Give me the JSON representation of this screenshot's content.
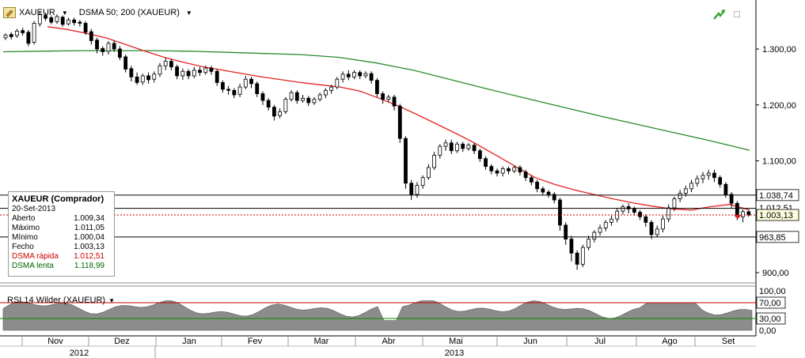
{
  "toolbar": {
    "symbol": "XAUEUR",
    "indicator": "DSMA 50; 200 (XAUEUR)"
  },
  "price_axis": {
    "ticks": [
      "1.300,00",
      "1.200,00",
      "1.100,00",
      "900,00"
    ],
    "hline_upper_label": "1.038,74",
    "hline_current_label": "1.003,13",
    "hline_lower_label": "963,85",
    "hidden_label_partial": "1.012,51"
  },
  "info_box": {
    "title": "XAUEUR (Comprador)",
    "date": "20-Set-2013",
    "rows": [
      {
        "label": "Aberto",
        "value": "1.009,34",
        "color": "#000000"
      },
      {
        "label": "Máximo",
        "value": "1.011,05",
        "color": "#000000"
      },
      {
        "label": "Mínimo",
        "value": "1.000,04",
        "color": "#000000"
      },
      {
        "label": "Fecho",
        "value": "1.003,13",
        "color": "#000000"
      },
      {
        "label": "DSMA rápida",
        "value": "1.012,51",
        "color": "#cc0000"
      },
      {
        "label": "DSMA lenta",
        "value": "1.118,99",
        "color": "#006600"
      }
    ]
  },
  "rsi": {
    "label": "RSI 14 Wilder (XAUEUR)",
    "ticks": [
      "100,00",
      "70,00",
      "30,00",
      "0,00"
    ]
  },
  "time_axis": {
    "months": [
      "Nov",
      "Dez",
      "Jan",
      "Fev",
      "Mar",
      "Abr",
      "Mai",
      "Jun",
      "Jul",
      "Ago",
      "Set"
    ],
    "years": [
      "2012",
      "2013"
    ]
  },
  "colors": {
    "fast_ma": "#e32222",
    "slow_ma": "#2a8a2a",
    "up_candle": "#ffffff",
    "down_candle": "#000000",
    "rsi_fill": "#8c8c8c",
    "rsi_upper_line": "#cc0000",
    "rsi_lower_line": "#008800",
    "accent_arrow": "#2aa02a"
  },
  "chart_data": {
    "type": "line",
    "title": "",
    "series": [
      {
        "name": "DSMA rápida",
        "values": [
          1340,
          1335,
          1328,
          1320,
          1308,
          1296,
          1285,
          1276,
          1268,
          1262,
          1256,
          1250,
          1245,
          1240,
          1236,
          1232,
          1225,
          1212,
          1198,
          1182,
          1165,
          1148,
          1130,
          1110,
          1090,
          1070,
          1058,
          1048,
          1040,
          1032,
          1025,
          1019,
          1014,
          1012,
          1018,
          1022,
          1012
        ]
      },
      {
        "name": "DSMA lenta",
        "values": [
          1295,
          1296,
          1297,
          1297,
          1297,
          1296,
          1294,
          1292,
          1290,
          1285,
          1275,
          1262,
          1245,
          1228,
          1212,
          1196,
          1180,
          1165,
          1150,
          1135,
          1119
        ]
      }
    ],
    "ylim": [
      880,
      1380
    ],
    "yticks": [
      900,
      1100,
      1200,
      1300
    ],
    "price_lines": [
      1038.74,
      1003.13,
      963.85
    ],
    "candles": [
      [
        1320,
        1325,
        1316,
        1328
      ],
      [
        1326,
        1322,
        1317,
        1330
      ],
      [
        1324,
        1332,
        1320,
        1336
      ],
      [
        1333,
        1329,
        1324,
        1338
      ],
      [
        1330,
        1310,
        1305,
        1334
      ],
      [
        1312,
        1346,
        1308,
        1350
      ],
      [
        1345,
        1362,
        1340,
        1368
      ],
      [
        1360,
        1355,
        1350,
        1365
      ],
      [
        1356,
        1348,
        1344,
        1360
      ],
      [
        1349,
        1358,
        1345,
        1362
      ],
      [
        1357,
        1344,
        1340,
        1360
      ],
      [
        1345,
        1352,
        1342,
        1356
      ],
      [
        1352,
        1347,
        1342,
        1356
      ],
      [
        1348,
        1346,
        1340,
        1352
      ],
      [
        1346,
        1330,
        1325,
        1350
      ],
      [
        1331,
        1315,
        1308,
        1336
      ],
      [
        1316,
        1300,
        1292,
        1320
      ],
      [
        1301,
        1295,
        1288,
        1305
      ],
      [
        1296,
        1310,
        1290,
        1314
      ],
      [
        1310,
        1300,
        1295,
        1315
      ],
      [
        1300,
        1285,
        1280,
        1305
      ],
      [
        1286,
        1264,
        1258,
        1290
      ],
      [
        1265,
        1250,
        1242,
        1270
      ],
      [
        1250,
        1240,
        1236,
        1258
      ],
      [
        1241,
        1252,
        1236,
        1256
      ],
      [
        1252,
        1245,
        1238,
        1258
      ],
      [
        1246,
        1255,
        1240,
        1260
      ],
      [
        1255,
        1270,
        1250,
        1275
      ],
      [
        1270,
        1278,
        1262,
        1284
      ],
      [
        1278,
        1268,
        1262,
        1282
      ],
      [
        1268,
        1252,
        1246,
        1272
      ],
      [
        1252,
        1260,
        1245,
        1265
      ],
      [
        1260,
        1252,
        1246,
        1264
      ],
      [
        1252,
        1262,
        1248,
        1268
      ],
      [
        1262,
        1258,
        1252,
        1268
      ],
      [
        1258,
        1266,
        1254,
        1270
      ],
      [
        1266,
        1260,
        1254,
        1270
      ],
      [
        1260,
        1240,
        1234,
        1264
      ],
      [
        1240,
        1228,
        1222,
        1244
      ],
      [
        1228,
        1226,
        1218,
        1234
      ],
      [
        1226,
        1218,
        1212,
        1230
      ],
      [
        1219,
        1232,
        1214,
        1238
      ],
      [
        1232,
        1246,
        1228,
        1252
      ],
      [
        1246,
        1238,
        1230,
        1250
      ],
      [
        1238,
        1220,
        1214,
        1242
      ],
      [
        1220,
        1208,
        1200,
        1224
      ],
      [
        1208,
        1196,
        1190,
        1212
      ],
      [
        1196,
        1180,
        1172,
        1200
      ],
      [
        1181,
        1188,
        1176,
        1194
      ],
      [
        1188,
        1210,
        1184,
        1214
      ],
      [
        1210,
        1222,
        1206,
        1226
      ],
      [
        1222,
        1208,
        1202,
        1226
      ],
      [
        1208,
        1212,
        1204,
        1218
      ],
      [
        1212,
        1204,
        1198,
        1216
      ],
      [
        1204,
        1210,
        1200,
        1214
      ],
      [
        1210,
        1218,
        1206,
        1222
      ],
      [
        1218,
        1226,
        1212,
        1230
      ],
      [
        1226,
        1232,
        1220,
        1236
      ],
      [
        1232,
        1246,
        1228,
        1250
      ],
      [
        1246,
        1255,
        1240,
        1260
      ],
      [
        1255,
        1250,
        1244,
        1262
      ],
      [
        1250,
        1258,
        1246,
        1262
      ],
      [
        1258,
        1252,
        1246,
        1262
      ],
      [
        1252,
        1256,
        1248,
        1260
      ],
      [
        1256,
        1244,
        1238,
        1260
      ],
      [
        1244,
        1220,
        1214,
        1248
      ],
      [
        1220,
        1210,
        1202,
        1224
      ],
      [
        1210,
        1214,
        1205,
        1218
      ],
      [
        1214,
        1198,
        1190,
        1218
      ],
      [
        1198,
        1140,
        1132,
        1202
      ],
      [
        1140,
        1060,
        1050,
        1144
      ],
      [
        1060,
        1040,
        1030,
        1066
      ],
      [
        1040,
        1056,
        1034,
        1062
      ],
      [
        1056,
        1070,
        1050,
        1074
      ],
      [
        1070,
        1088,
        1066,
        1094
      ],
      [
        1088,
        1110,
        1084,
        1116
      ],
      [
        1110,
        1126,
        1104,
        1130
      ],
      [
        1126,
        1132,
        1118,
        1138
      ],
      [
        1132,
        1118,
        1112,
        1138
      ],
      [
        1118,
        1130,
        1114,
        1134
      ],
      [
        1130,
        1122,
        1116,
        1134
      ],
      [
        1122,
        1128,
        1118,
        1132
      ],
      [
        1128,
        1118,
        1112,
        1132
      ],
      [
        1118,
        1104,
        1098,
        1122
      ],
      [
        1104,
        1090,
        1084,
        1108
      ],
      [
        1090,
        1082,
        1076,
        1094
      ],
      [
        1082,
        1078,
        1072,
        1086
      ],
      [
        1078,
        1086,
        1072,
        1090
      ],
      [
        1086,
        1082,
        1076,
        1090
      ],
      [
        1082,
        1088,
        1078,
        1092
      ],
      [
        1088,
        1080,
        1074,
        1092
      ],
      [
        1080,
        1070,
        1064,
        1084
      ],
      [
        1070,
        1062,
        1056,
        1074
      ],
      [
        1062,
        1050,
        1044,
        1066
      ],
      [
        1050,
        1044,
        1038,
        1054
      ],
      [
        1044,
        1040,
        1034,
        1048
      ],
      [
        1040,
        1030,
        1024,
        1044
      ],
      [
        1030,
        985,
        975,
        1034
      ],
      [
        985,
        960,
        950,
        990
      ],
      [
        960,
        935,
        920,
        966
      ],
      [
        935,
        915,
        905,
        940
      ],
      [
        915,
        945,
        910,
        950
      ],
      [
        945,
        960,
        940,
        966
      ],
      [
        960,
        972,
        954,
        976
      ],
      [
        972,
        980,
        966,
        986
      ],
      [
        980,
        990,
        974,
        994
      ],
      [
        990,
        996,
        984,
        1002
      ],
      [
        996,
        1010,
        990,
        1016
      ],
      [
        1010,
        1018,
        1004,
        1022
      ],
      [
        1018,
        1014,
        1006,
        1024
      ],
      [
        1014,
        1008,
        1002,
        1018
      ],
      [
        1008,
        1000,
        994,
        1012
      ],
      [
        1000,
        990,
        982,
        1004
      ],
      [
        990,
        968,
        960,
        994
      ],
      [
        968,
        978,
        964,
        984
      ],
      [
        978,
        996,
        972,
        1002
      ],
      [
        996,
        1016,
        990,
        1022
      ],
      [
        1016,
        1032,
        1010,
        1036
      ],
      [
        1032,
        1042,
        1026,
        1048
      ],
      [
        1042,
        1050,
        1036,
        1056
      ],
      [
        1050,
        1060,
        1044,
        1066
      ],
      [
        1060,
        1068,
        1054,
        1074
      ],
      [
        1068,
        1074,
        1060,
        1080
      ],
      [
        1074,
        1078,
        1066,
        1084
      ],
      [
        1078,
        1070,
        1062,
        1084
      ],
      [
        1070,
        1058,
        1052,
        1074
      ],
      [
        1058,
        1040,
        1034,
        1062
      ],
      [
        1040,
        1024,
        1016,
        1044
      ],
      [
        1024,
        1000,
        994,
        1028
      ],
      [
        1000,
        1009,
        990,
        1013
      ],
      [
        1009,
        1003,
        1000,
        1011
      ]
    ]
  }
}
